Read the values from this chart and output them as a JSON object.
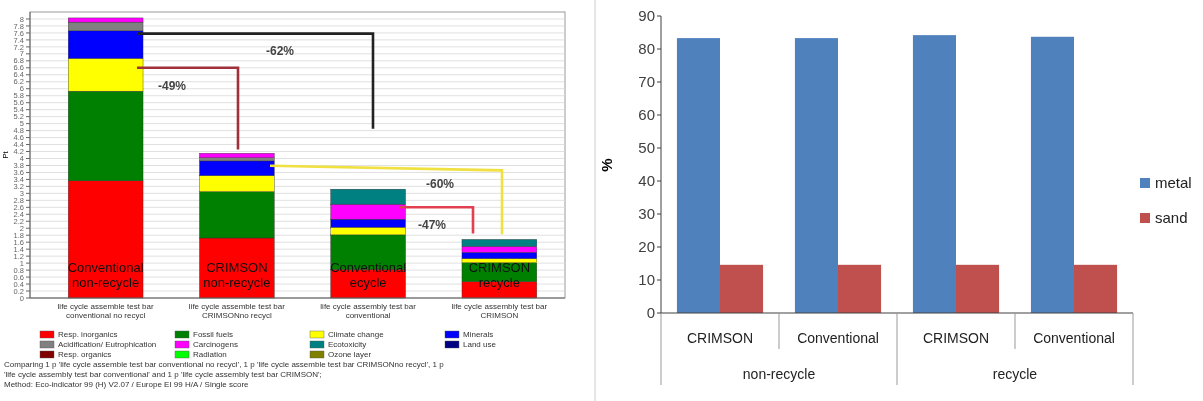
{
  "chart_data": [
    {
      "type": "bar",
      "stacked": true,
      "ylabel": "Pt",
      "categories": [
        "life cycle assemble test bar conventional no recycl",
        "life cycle assemble test bar CRIMSONno recycl",
        "life cycle assembly test bar conventional",
        "life cycle assembly test bar CRIMSON"
      ],
      "series": [
        {
          "name": "Resp. inorganics",
          "color": "#ff0000",
          "values": [
            3.36,
            1.72,
            0.82,
            0.47
          ]
        },
        {
          "name": "Fossil fuels",
          "color": "#008000",
          "values": [
            2.57,
            1.33,
            0.99,
            0.54
          ]
        },
        {
          "name": "Climate change",
          "color": "#ffff00",
          "values": [
            0.94,
            0.46,
            0.22,
            0.12
          ]
        },
        {
          "name": "Minerals",
          "color": "#0000ff",
          "values": [
            0.79,
            0.42,
            0.23,
            0.18
          ]
        },
        {
          "name": "Acidification/ Eutrophication",
          "color": "#808080",
          "values": [
            0.25,
            0.09,
            0.0,
            0.0
          ]
        },
        {
          "name": "Carcinogens",
          "color": "#ff00ff",
          "values": [
            0.12,
            0.13,
            0.43,
            0.17
          ]
        },
        {
          "name": "Ecotoxicity",
          "color": "#008080",
          "values": [
            0.0,
            0.0,
            0.43,
            0.2
          ]
        },
        {
          "name": "Land use",
          "color": "#000080",
          "values": [
            0,
            0,
            0,
            0
          ]
        },
        {
          "name": "Resp. organics",
          "color": "#800000",
          "values": [
            0,
            0,
            0,
            0
          ]
        },
        {
          "name": "Radiation",
          "color": "#00ff00",
          "values": [
            0,
            0,
            0,
            0
          ]
        },
        {
          "name": "Ozone layer",
          "color": "#808000",
          "values": [
            0,
            0,
            0,
            0
          ]
        }
      ],
      "ylim": [
        0,
        8.2
      ],
      "yticks": [
        0,
        0.2,
        0.4,
        0.6,
        0.8,
        1,
        1.2,
        1.4,
        1.6,
        1.8,
        2,
        2.2,
        2.4,
        2.6,
        2.8,
        3,
        3.2,
        3.4,
        3.6,
        3.8,
        4,
        4.2,
        4.4,
        4.6,
        4.8,
        5,
        5.2,
        5.4,
        5.6,
        5.8,
        6,
        6.2,
        6.4,
        6.6,
        6.8,
        7,
        7.2,
        7.4,
        7.6,
        7.8,
        8
      ],
      "grid": "y",
      "legend": "bottom",
      "annotations": [
        "-62%",
        "-49%",
        "-60%",
        "-47%",
        "Comparing 1 p 'life cycle assemble test bar conventional no recycl', 1 p 'life cycle assemble test bar CRIMSONno recycl', 1 p 'life cycle assembly test bar conventional' and 1 p 'life cycle assembly test bar CRIMSON';",
        "Method: Eco-indicator 99 (H) V2.07 / Europe EI 99 H/A / Single score",
        "Conventional non-recycle",
        "CRIMSON non-recycle",
        "Conventional ecycle",
        "CRIMSON recycle"
      ]
    },
    {
      "type": "bar",
      "ylabel": "%",
      "categories": [
        "CRIMSON",
        "Conventional",
        "CRIMSON",
        "Conventional"
      ],
      "series": [
        {
          "name": "metal",
          "color": "#4f81bd",
          "values": [
            83.3,
            83.3,
            84.2,
            83.7
          ]
        },
        {
          "name": "sand",
          "color": "#c0504d",
          "values": [
            14.6,
            14.6,
            14.6,
            14.6
          ]
        }
      ],
      "ylim": [
        0,
        90
      ],
      "yticks": [
        0,
        10,
        20,
        30,
        40,
        50,
        60,
        70,
        80,
        90
      ],
      "legend": "right",
      "annotations": [
        "non-recycle",
        "recycle"
      ]
    }
  ]
}
